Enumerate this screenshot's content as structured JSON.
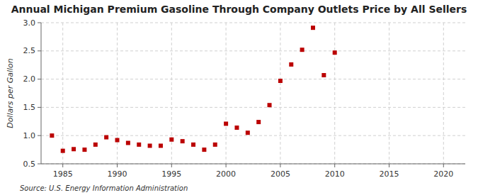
{
  "chart_data": {
    "type": "scatter",
    "title": "Annual Michigan Premium Gasoline Through Company Outlets Price by All Sellers",
    "y_label": "Dollars per Gallon",
    "annotations": [
      "Source: U.S. Energy Information Administration"
    ],
    "x": [
      1984,
      1985,
      1986,
      1987,
      1988,
      1989,
      1990,
      1991,
      1992,
      1993,
      1994,
      1995,
      1996,
      1997,
      1998,
      1999,
      2000,
      2001,
      2002,
      2003,
      2004,
      2005,
      2006,
      2007,
      2008,
      2009,
      2010
    ],
    "values": [
      1.0,
      0.73,
      0.76,
      0.75,
      0.84,
      0.97,
      0.92,
      0.87,
      0.84,
      0.82,
      0.82,
      0.93,
      0.9,
      0.84,
      0.75,
      0.84,
      1.21,
      1.14,
      1.05,
      1.24,
      1.54,
      1.97,
      2.26,
      2.52,
      2.91,
      2.07,
      2.47
    ],
    "color": "#bb0000",
    "marker": "square",
    "xlim": [
      1983,
      2022
    ],
    "xticks": [
      1985,
      1990,
      1995,
      2000,
      2005,
      2010,
      2015,
      2020
    ],
    "ylim": [
      0.5,
      3.0
    ],
    "yticks": [
      0.5,
      {
        "value": 1.0,
        "label": "1.0"
      },
      1.5,
      {
        "value": 2.0,
        "label": "2.0"
      },
      2.5,
      {
        "value": 3.0,
        "label": "3.0"
      }
    ],
    "grid": true
  }
}
